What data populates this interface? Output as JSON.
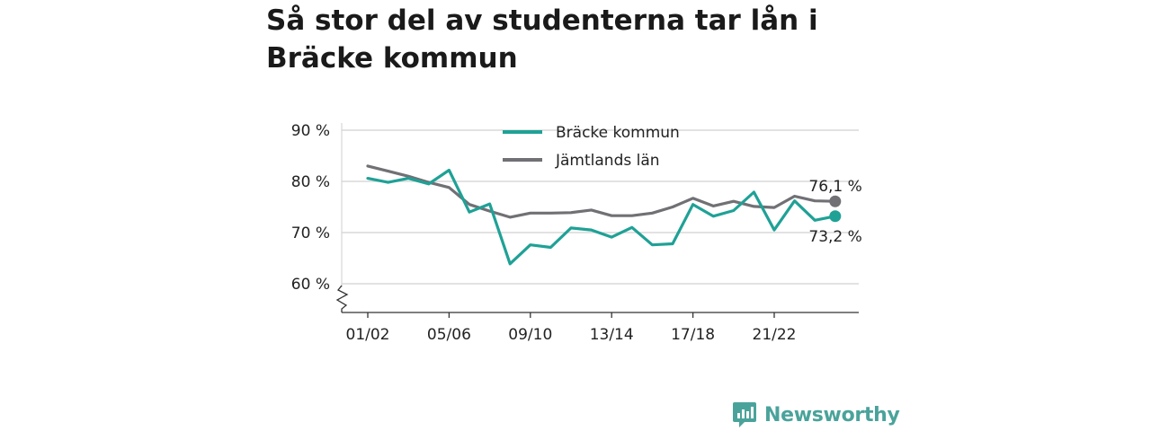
{
  "title": "Så stor del av studenterna tar lån i Bräcke kommun",
  "brand": {
    "name": "Newsworthy",
    "logo_icon": "bar-chart-speech-bubble-icon"
  },
  "chart_data": {
    "type": "line",
    "ylim": [
      55,
      90
    ],
    "yticks": [
      {
        "value": 60,
        "label": "60 %"
      },
      {
        "value": 70,
        "label": "70 %"
      },
      {
        "value": 80,
        "label": "80 %"
      },
      {
        "value": 90,
        "label": "90 %"
      }
    ],
    "x_tick_labels": [
      "01/02",
      "05/06",
      "09/10",
      "13/14",
      "17/18",
      "21/22"
    ],
    "x_tick_index": [
      0,
      4,
      8,
      12,
      16,
      20
    ],
    "axis_break": true,
    "grid": true,
    "legend_position": "top-center",
    "series": [
      {
        "name": "Bräcke kommun",
        "color": "#1fa196",
        "values": [
          80.6,
          79.8,
          80.6,
          79.5,
          82.2,
          74.0,
          75.6,
          63.9,
          67.6,
          67.1,
          70.9,
          70.5,
          69.1,
          71.0,
          67.6,
          67.8,
          75.5,
          73.2,
          74.3,
          77.9,
          70.5,
          76.2,
          72.4,
          73.2
        ],
        "end_label": "73,2 %"
      },
      {
        "name": "Jämtlands län",
        "color": "#707075",
        "values": [
          83.0,
          82.0,
          81.0,
          79.8,
          78.8,
          75.5,
          74.2,
          73.0,
          73.8,
          73.8,
          73.9,
          74.4,
          73.3,
          73.3,
          73.8,
          75.0,
          76.7,
          75.2,
          76.1,
          75.1,
          74.9,
          77.1,
          76.2,
          76.1
        ],
        "end_label": "76,1 %"
      }
    ]
  }
}
